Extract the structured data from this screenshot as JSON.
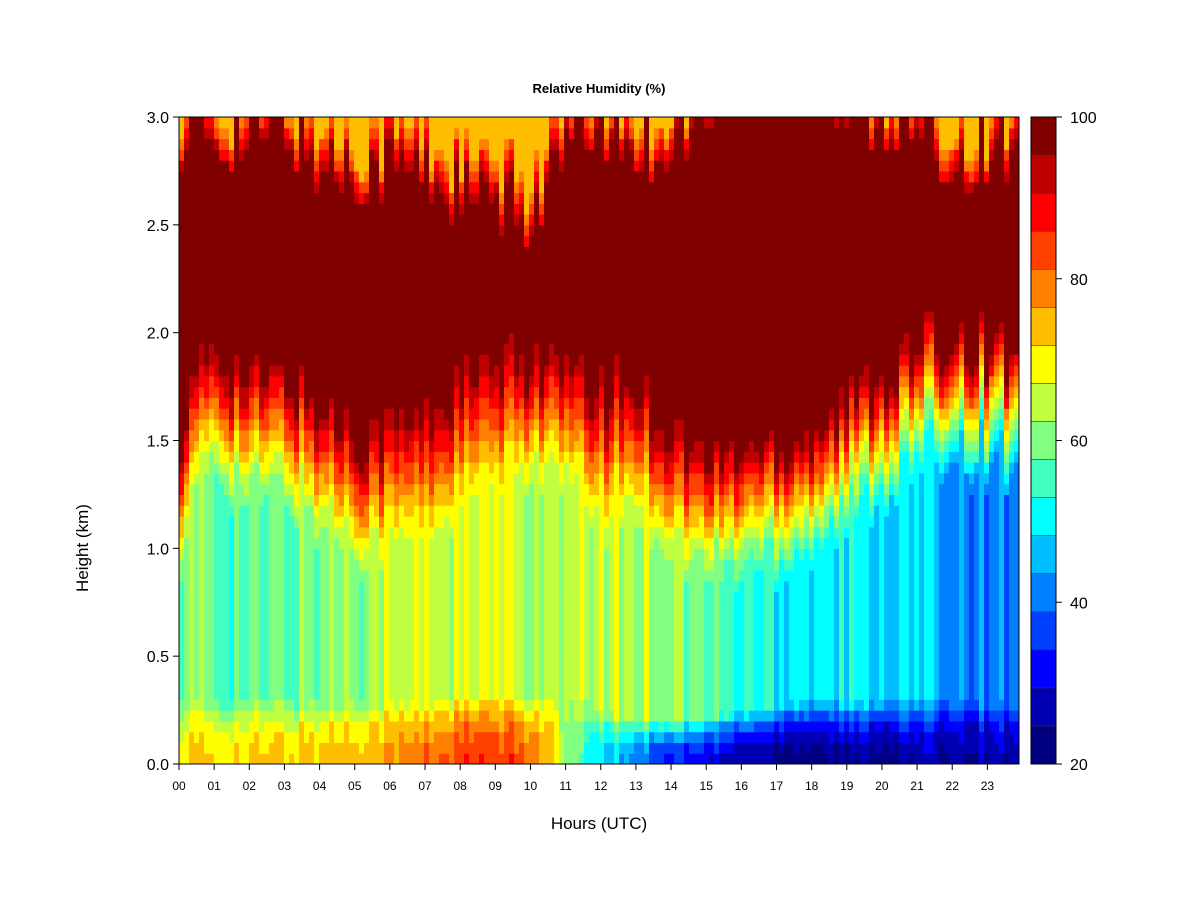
{
  "chart_data": {
    "type": "heatmap",
    "title": "Relative Humidity (%)",
    "xlabel": "Hours (UTC)",
    "ylabel": "Height (km)",
    "xlim": [
      0,
      23.9
    ],
    "ylim": [
      0.0,
      3.0
    ],
    "x_ticks": [
      "00",
      "01",
      "02",
      "03",
      "04",
      "05",
      "06",
      "07",
      "08",
      "09",
      "10",
      "11",
      "12",
      "13",
      "14",
      "15",
      "16",
      "17",
      "18",
      "19",
      "20",
      "21",
      "22",
      "23"
    ],
    "y_ticks": [
      "0.0",
      "0.5",
      "1.0",
      "1.5",
      "2.0",
      "2.5",
      "3.0"
    ],
    "colorbar": {
      "range": [
        20,
        100
      ],
      "step": 5,
      "tick_labels": [
        "20",
        "40",
        "60",
        "80",
        "100"
      ],
      "colors": [
        "#000080",
        "#0000B2",
        "#0000FF",
        "#0040FF",
        "#0080FF",
        "#00BFFF",
        "#00FFFF",
        "#40FFBF",
        "#80FF80",
        "#BFFF40",
        "#FFFF00",
        "#FFBF00",
        "#FF8000",
        "#FF4000",
        "#FF0000",
        "#BF0000",
        "#800000"
      ]
    },
    "z_description": "Relative humidity profile; moist (near 100%) layer roughly 1.5-3.0 km through most of the day; dry boundary layer below 0.3 km after 13 UTC (values ~20-35%)."
  }
}
